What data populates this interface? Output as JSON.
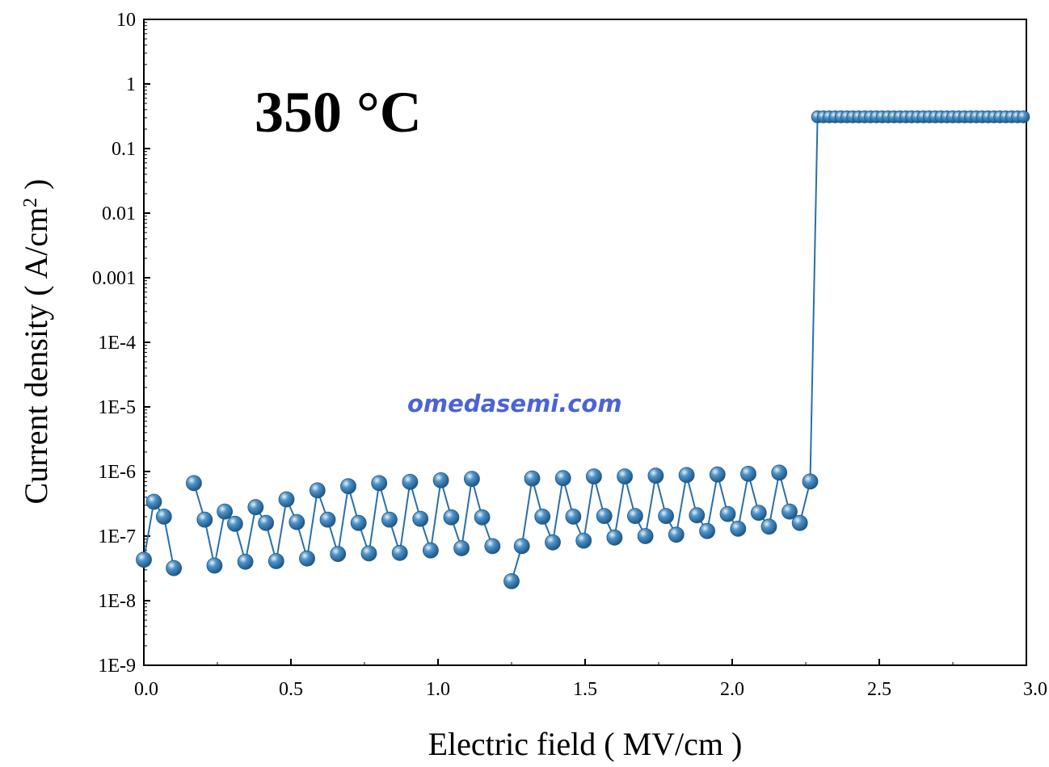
{
  "chart_data": {
    "type": "scatter",
    "title": "",
    "xlabel": "Electric field ( MV/cm )",
    "ylabel_main": "Current density ( A/cm",
    "ylabel_sup": "2",
    "ylabel_tail": " )",
    "xlim": [
      0,
      3.0
    ],
    "ylim": [
      1e-09,
      10
    ],
    "y_scale": "log",
    "grid": false,
    "x_ticks": [
      0,
      0.5,
      1.0,
      1.5,
      2.0,
      2.5,
      3.0
    ],
    "x_tick_labels": [
      "0.0",
      "0.5",
      "1.0",
      "1.5",
      "2.0",
      "2.5",
      "3.0"
    ],
    "y_ticks": [
      1e-09,
      1e-08,
      1e-07,
      1e-06,
      1e-05,
      0.0001,
      0.001,
      0.01,
      0.1,
      1,
      10
    ],
    "y_tick_labels": [
      "1E-9",
      "1E-8",
      "1E-7",
      "1E-6",
      "1E-5",
      "1E-4",
      "0.001",
      "0.01",
      "0.1",
      "1",
      "10"
    ],
    "annotation": "350 °C",
    "watermark": "omedasemi.com",
    "series_color": "#2a6fa8",
    "watermark_color": "#4a63d6",
    "series": [
      {
        "segments": [
          [
            [
              0.0,
              4.3e-08
            ],
            [
              0.034,
              3.4e-07
            ],
            [
              0.068,
              2e-07
            ],
            [
              0.102,
              3.2e-08
            ]
          ],
          [
            [
              0.17,
              6.6e-07
            ],
            [
              0.207,
              1.8e-07
            ],
            [
              0.24,
              3.5e-08
            ],
            [
              0.275,
              2.4e-07
            ],
            [
              0.31,
              1.55e-07
            ],
            [
              0.345,
              4e-08
            ],
            [
              0.38,
              2.8e-07
            ],
            [
              0.415,
              1.6e-07
            ],
            [
              0.45,
              4.1e-08
            ],
            [
              0.485,
              3.7e-07
            ],
            [
              0.52,
              1.65e-07
            ],
            [
              0.555,
              4.5e-08
            ],
            [
              0.59,
              5.1e-07
            ],
            [
              0.625,
              1.8e-07
            ],
            [
              0.66,
              5.3e-08
            ],
            [
              0.695,
              5.9e-07
            ],
            [
              0.73,
              1.6e-07
            ],
            [
              0.765,
              5.4e-08
            ],
            [
              0.8,
              6.6e-07
            ],
            [
              0.835,
              1.8e-07
            ],
            [
              0.87,
              5.5e-08
            ],
            [
              0.905,
              6.9e-07
            ],
            [
              0.94,
              1.85e-07
            ],
            [
              0.975,
              6e-08
            ],
            [
              1.01,
              7.3e-07
            ],
            [
              1.045,
              1.95e-07
            ],
            [
              1.08,
              6.5e-08
            ],
            [
              1.115,
              7.7e-07
            ],
            [
              1.15,
              1.95e-07
            ],
            [
              1.185,
              7e-08
            ]
          ],
          [
            [
              1.25,
              2e-08
            ],
            [
              1.285,
              7e-08
            ],
            [
              1.32,
              7.8e-07
            ],
            [
              1.355,
              2e-07
            ],
            [
              1.39,
              8e-08
            ],
            [
              1.425,
              7.9e-07
            ],
            [
              1.46,
              2e-07
            ],
            [
              1.495,
              8.5e-08
            ],
            [
              1.53,
              8.4e-07
            ],
            [
              1.565,
              2.05e-07
            ],
            [
              1.6,
              9.5e-08
            ],
            [
              1.635,
              8.4e-07
            ],
            [
              1.67,
              2.05e-07
            ],
            [
              1.705,
              1e-07
            ],
            [
              1.74,
              8.6e-07
            ],
            [
              1.775,
              2.05e-07
            ],
            [
              1.81,
              1.05e-07
            ],
            [
              1.845,
              8.8e-07
            ],
            [
              1.88,
              2.1e-07
            ],
            [
              1.915,
              1.2e-07
            ],
            [
              1.95,
              9e-07
            ],
            [
              1.985,
              2.2e-07
            ],
            [
              2.02,
              1.3e-07
            ],
            [
              2.055,
              9.2e-07
            ],
            [
              2.09,
              2.3e-07
            ],
            [
              2.125,
              1.4e-07
            ],
            [
              2.16,
              9.6e-07
            ],
            [
              2.195,
              2.4e-07
            ],
            [
              2.23,
              1.6e-07
            ],
            [
              2.265,
              7e-07
            ],
            [
              2.29,
              0.31
            ],
            [
              2.31,
              0.31
            ],
            [
              2.33,
              0.31
            ],
            [
              2.35,
              0.31
            ],
            [
              2.37,
              0.31
            ],
            [
              2.39,
              0.31
            ],
            [
              2.41,
              0.31
            ],
            [
              2.43,
              0.31
            ],
            [
              2.45,
              0.31
            ],
            [
              2.47,
              0.31
            ],
            [
              2.49,
              0.31
            ],
            [
              2.51,
              0.31
            ],
            [
              2.53,
              0.31
            ],
            [
              2.55,
              0.31
            ],
            [
              2.57,
              0.31
            ],
            [
              2.59,
              0.31
            ],
            [
              2.61,
              0.31
            ],
            [
              2.63,
              0.31
            ],
            [
              2.65,
              0.31
            ],
            [
              2.67,
              0.31
            ],
            [
              2.69,
              0.31
            ],
            [
              2.71,
              0.31
            ],
            [
              2.73,
              0.31
            ],
            [
              2.75,
              0.31
            ],
            [
              2.77,
              0.31
            ],
            [
              2.79,
              0.31
            ],
            [
              2.81,
              0.31
            ],
            [
              2.83,
              0.31
            ],
            [
              2.85,
              0.31
            ],
            [
              2.87,
              0.31
            ],
            [
              2.89,
              0.31
            ],
            [
              2.91,
              0.31
            ],
            [
              2.93,
              0.31
            ],
            [
              2.95,
              0.31
            ],
            [
              2.97,
              0.31
            ],
            [
              2.99,
              0.31
            ]
          ]
        ]
      }
    ]
  }
}
